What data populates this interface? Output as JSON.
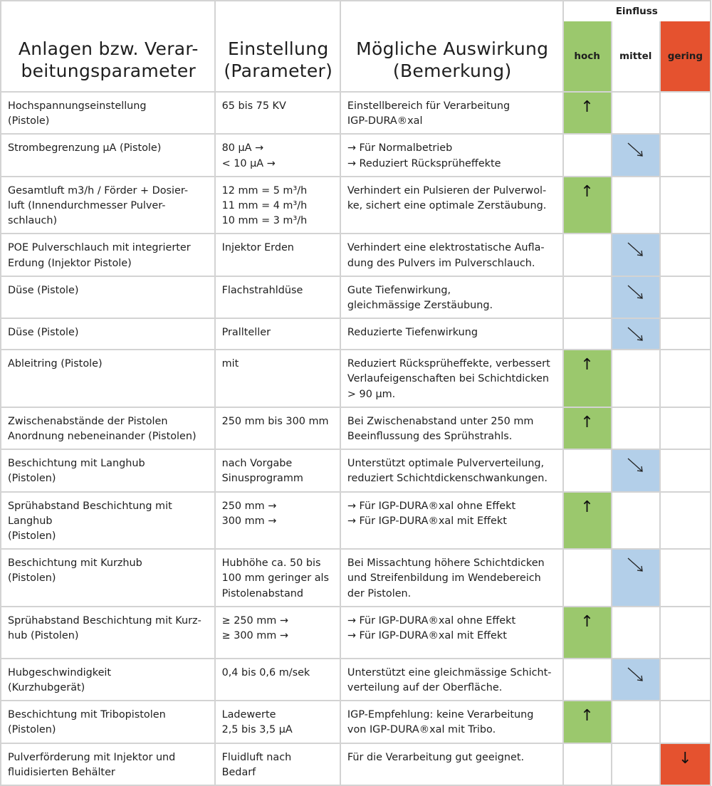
{
  "header": {
    "col1": [
      "Anlagen bzw. Verar-",
      "beitungsparameter"
    ],
    "col2": [
      "Einstellung",
      "(Parameter)"
    ],
    "col3": [
      "Mögliche Auswirkung",
      "(Bemerkung)"
    ],
    "einfluss": "Einfluss",
    "levels": {
      "hoch": "hoch",
      "mittel": "mittel",
      "gering": "gering"
    }
  },
  "colors": {
    "hoch": "#9bc86d",
    "mittel": "#b3cfe9",
    "gering": "#e5522f"
  },
  "icons": {
    "hoch": "arrow-up-icon",
    "mittel": "arrow-diagonal-down-right-icon",
    "gering": "arrow-down-icon"
  },
  "rows": [
    {
      "param": [
        "Hochspannungseinstellung",
        "(Pistole)"
      ],
      "setting": [
        "65 bis 75 KV"
      ],
      "effect": [
        "Einstellbereich für Verarbeitung",
        "IGP-DURA®xal"
      ],
      "level": "hoch"
    },
    {
      "param": [
        "Strombegrenzung µA (Pistole)"
      ],
      "setting": [
        "80 µA →",
        "< 10 µA →"
      ],
      "effect": [
        "→ Für Normalbetrieb",
        "→ Reduziert Rücksprüheffekte"
      ],
      "level": "mittel"
    },
    {
      "param": [
        "Gesamtluft m3/h / Förder + Dosier-",
        "luft (Innendurchmesser Pulver-",
        "schlauch)"
      ],
      "setting": [
        "12 mm = 5 m³/h",
        "11 mm = 4 m³/h",
        "10 mm = 3 m³/h"
      ],
      "effect": [
        "Verhindert ein Pulsieren der Pulverwol-",
        "ke, sichert eine optimale Zerstäubung."
      ],
      "level": "hoch"
    },
    {
      "param": [
        "POE Pulverschlauch mit integrierter",
        "Erdung (Injektor Pistole)"
      ],
      "setting": [
        "Injektor Erden"
      ],
      "effect": [
        "Verhindert eine elektrostatische Aufla-",
        "dung des Pulvers im Pulverschlauch."
      ],
      "level": "mittel"
    },
    {
      "param": [
        "Düse (Pistole)"
      ],
      "setting": [
        "Flachstrahldüse"
      ],
      "effect": [
        "Gute Tiefenwirkung,",
        "gleichmässige Zerstäubung."
      ],
      "level": "mittel"
    },
    {
      "param": [
        "Düse (Pistole)"
      ],
      "setting": [
        "Pralltel­ler"
      ],
      "effect": [
        "Reduzierte Tiefenwirkung"
      ],
      "level": "mittel"
    },
    {
      "param": [
        "Ableitring (Pistole)"
      ],
      "setting": [
        "mit"
      ],
      "effect": [
        "Reduziert Rücksprüheffekte, verbessert",
        "Verlaufeigenschaften bei Schichtdicken",
        "> 90 µm."
      ],
      "level": "hoch"
    },
    {
      "param": [
        "Zwischenabstände der Pistolen",
        "Anordnung nebeneinander (Pistolen)"
      ],
      "setting": [
        "250 mm bis 300 mm"
      ],
      "effect": [
        "Bei Zwischenabstand unter 250 mm",
        "Beeinflussung des Sprühstrahls."
      ],
      "level": "hoch"
    },
    {
      "param": [
        "Beschichtung mit Langhub",
        "(Pistolen)"
      ],
      "setting": [
        "nach Vorgabe",
        "Sinusprogramm"
      ],
      "effect": [
        "Unterstützt optimale Pulververteilung,",
        "reduziert Schichtdickenschwankungen."
      ],
      "level": "mittel"
    },
    {
      "param": [
        "Sprühabstand Beschichtung mit",
        "Langhub",
        "(Pistolen)"
      ],
      "setting": [
        "250 mm →",
        "300 mm →"
      ],
      "effect": [
        "→ Für IGP-DURA®xal ohne Effekt",
        "→ Für IGP-DURA®xal mit Effekt"
      ],
      "level": "hoch"
    },
    {
      "param": [
        "Beschichtung mit Kurzhub",
        "(Pistolen)"
      ],
      "setting": [
        "Hubhöhe ca. 50 bis",
        "100 mm geringer als",
        "Pistolenabstand"
      ],
      "effect": [
        "Bei Missachtung höhere Schichtdicken",
        "und Streifenbildung  im Wendebereich",
        "der Pistolen."
      ],
      "level": "mittel"
    },
    {
      "param": [
        "Sprühabstand Beschichtung mit Kurz-",
        "hub (Pistolen)"
      ],
      "setting": [
        "≥ 250 mm →",
        "≥ 300 mm →"
      ],
      "effect": [
        "→ Für IGP-DURA®xal ohne Effekt",
        "→ Für IGP-DURA®xal mit Effekt"
      ],
      "level": "hoch"
    },
    {
      "param": [
        "Hubgeschwindigkeit",
        "(Kurzhubgerät)"
      ],
      "setting": [
        "0,4 bis 0,6 m/sek"
      ],
      "effect": [
        "Unterstützt eine gleichmässige Schicht-",
        "verteilung auf der Oberfläche."
      ],
      "level": "mittel"
    },
    {
      "param": [
        "Beschichtung mit Tribopistolen",
        "(Pistolen)"
      ],
      "setting": [
        "Ladewerte",
        "2,5 bis 3,5 µA"
      ],
      "effect": [
        "IGP-Empfehlung: keine Verarbeitung",
        "von IGP-DURA®xal mit Tribo."
      ],
      "level": "hoch"
    },
    {
      "param": [
        "Pulverförderung mit Injektor und",
        "fluidisierten Behälter"
      ],
      "setting": [
        "Fluidluft nach",
        "Bedarf"
      ],
      "effect": [
        "Für die Verarbeitung gut geeignet."
      ],
      "level": "gering"
    }
  ]
}
